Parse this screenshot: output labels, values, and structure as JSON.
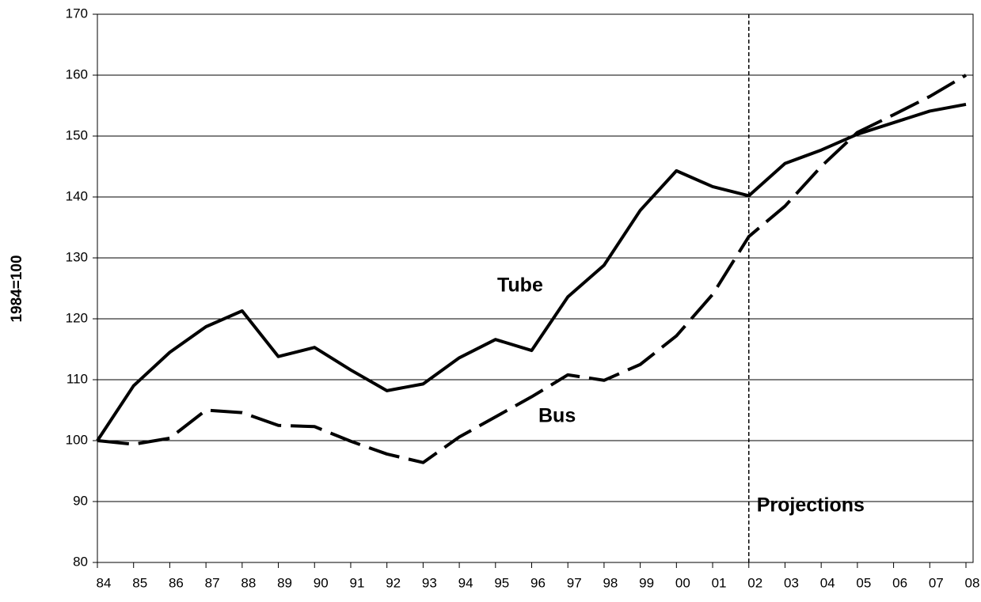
{
  "chart_data": {
    "type": "line",
    "y_label": "1984=100",
    "categories": [
      "84",
      "85",
      "86",
      "87",
      "88",
      "89",
      "90",
      "91",
      "92",
      "93",
      "94",
      "95",
      "96",
      "97",
      "98",
      "99",
      "00",
      "01",
      "02",
      "03",
      "04",
      "05",
      "06",
      "07",
      "08"
    ],
    "series": [
      {
        "name": "Tube",
        "color": "#000000",
        "style": "solid",
        "values": [
          100,
          109,
          114.5,
          118.7,
          121.3,
          113.8,
          115.3,
          111.6,
          108.2,
          109.3,
          113.6,
          116.6,
          114.8,
          123.6,
          128.8,
          137.8,
          144.3,
          141.7,
          140.2,
          145.5,
          147.7,
          150.3,
          152.2,
          154.1,
          155.2
        ]
      },
      {
        "name": "Bus",
        "color": "#000000",
        "style": "dashed",
        "values": [
          100,
          99.4,
          100.4,
          105,
          104.6,
          102.5,
          102.3,
          99.9,
          97.8,
          96.4,
          100.6,
          103.9,
          107.2,
          110.8,
          109.9,
          112.5,
          117.2,
          124,
          133.5,
          138.5,
          145,
          150.6,
          153.5,
          156.5,
          160
        ]
      }
    ],
    "projection": {
      "start": "02",
      "label": "Projections"
    },
    "ylim": [
      80,
      170
    ],
    "yticks": [
      80,
      90,
      100,
      110,
      120,
      130,
      140,
      150,
      160,
      170
    ],
    "grid": true
  }
}
